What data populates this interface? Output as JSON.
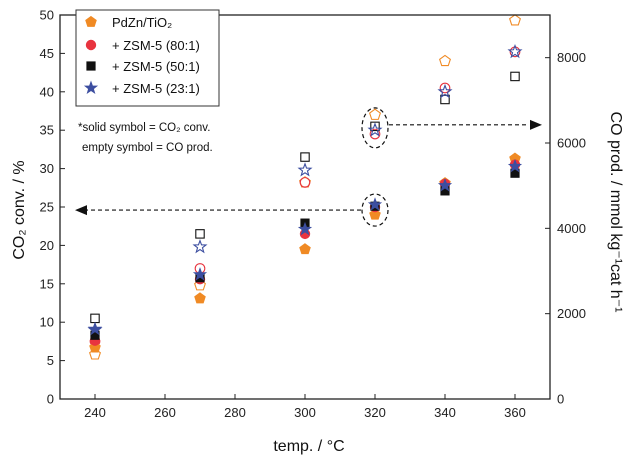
{
  "chart_data": {
    "type": "scatter",
    "x_axis": {
      "label": "temp. / °C",
      "range": [
        230,
        370
      ],
      "ticks": [
        240,
        260,
        280,
        300,
        320,
        340,
        360
      ]
    },
    "y_left": {
      "label": "CO₂ conv. / %",
      "range": [
        0,
        50
      ],
      "ticks": [
        0,
        5,
        10,
        15,
        20,
        25,
        30,
        35,
        40,
        45,
        50
      ]
    },
    "y_right": {
      "label": "CO prod. / mmol kg⁻¹cat h⁻¹",
      "range": [
        0,
        9000
      ],
      "ticks": [
        0,
        2000,
        4000,
        6000,
        8000
      ]
    },
    "legend": {
      "position": "top-left",
      "entries": [
        {
          "label": "PdZn/TiO₂",
          "marker": "pentagon",
          "color": "#f08a24"
        },
        {
          "label": "+ ZSM-5 (80:1)",
          "marker": "circle",
          "color": "#e8343f"
        },
        {
          "label": "+ ZSM-5 (50:1)",
          "marker": "square",
          "color": "#111111"
        },
        {
          "label": "+ ZSM-5 (23:1)",
          "marker": "star",
          "color": "#3c4ea0"
        }
      ]
    },
    "annotations": [
      "*solid symbol = CO₂ conv.",
      "empty symbol = CO prod."
    ],
    "series": [
      {
        "name": "PdZn/TiO₂",
        "marker": "pentagon",
        "color": "#f08a24",
        "x": [
          240,
          270,
          300,
          320,
          340,
          360
        ],
        "co2_conv": [
          6.7,
          13.1,
          19.5,
          24.0,
          28.1,
          31.3
        ],
        "co_prod_equiv_pct": [
          5.8,
          14.8,
          28.2,
          37.0,
          44.0,
          49.3
        ]
      },
      {
        "name": "+ ZSM-5 (80:1)",
        "marker": "circle",
        "color": "#e8343f",
        "x": [
          240,
          270,
          300,
          320,
          340,
          360
        ],
        "co2_conv": [
          7.6,
          15.6,
          21.5,
          25.0,
          28.0,
          30.5
        ],
        "co_prod_equiv_pct": [
          7.5,
          17.0,
          28.2,
          34.5,
          40.5,
          45.2
        ]
      },
      {
        "name": "+ ZSM-5 (50:1)",
        "marker": "square",
        "color": "#111111",
        "x": [
          240,
          270,
          300,
          320,
          340,
          360
        ],
        "co2_conv": [
          8.3,
          15.8,
          22.9,
          25.1,
          27.1,
          29.4
        ],
        "co_prod_equiv_pct": [
          10.5,
          21.5,
          31.5,
          35.5,
          39.0,
          42.0
        ]
      },
      {
        "name": "+ ZSM-5 (23:1)",
        "marker": "star",
        "color": "#3c4ea0",
        "x": [
          240,
          270,
          300,
          320,
          340,
          360
        ],
        "co2_conv": [
          9.1,
          16.2,
          22.1,
          25.3,
          27.8,
          30.3
        ],
        "co_prod_equiv_pct": [
          9.0,
          19.8,
          29.8,
          35.0,
          40.0,
          45.2
        ]
      }
    ]
  }
}
